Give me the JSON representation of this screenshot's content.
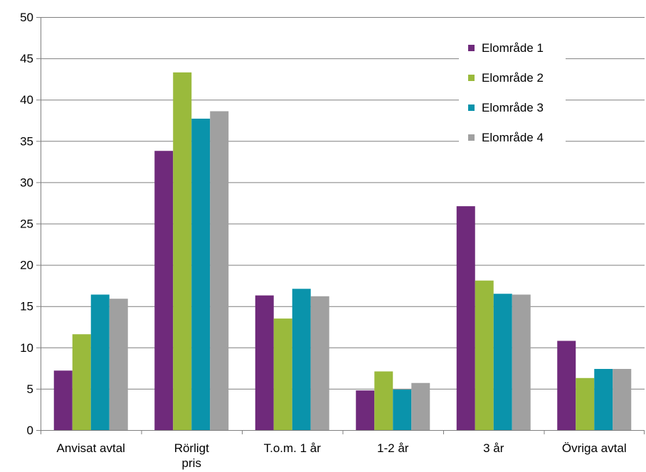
{
  "chart_data": {
    "type": "bar",
    "title": "",
    "xlabel": "",
    "ylabel": "",
    "ylim": [
      0,
      50
    ],
    "yticks": [
      0,
      5,
      10,
      15,
      20,
      25,
      30,
      35,
      40,
      45,
      50
    ],
    "grid": true,
    "legend_position": "top-right",
    "categories": [
      [
        "Anvisat avtal"
      ],
      [
        "Rörligt",
        "pris"
      ],
      [
        "T.o.m. 1 år"
      ],
      [
        "1-2 år"
      ],
      [
        "3 år"
      ],
      [
        "Övriga avtal"
      ]
    ],
    "series": [
      {
        "name": "Elområde 1",
        "color": "#6f2a7b",
        "values": [
          7.2,
          33.8,
          16.3,
          4.8,
          27.1,
          10.8
        ]
      },
      {
        "name": "Elområde 2",
        "color": "#9aba3c",
        "values": [
          11.6,
          43.3,
          13.5,
          7.1,
          18.1,
          6.3
        ]
      },
      {
        "name": "Elområde 3",
        "color": "#0a93ab",
        "values": [
          16.4,
          37.7,
          17.1,
          4.9,
          16.5,
          7.4
        ]
      },
      {
        "name": "Elområde 4",
        "color": "#a0a0a0",
        "values": [
          15.9,
          38.6,
          16.2,
          5.7,
          16.4,
          7.4
        ]
      }
    ]
  }
}
